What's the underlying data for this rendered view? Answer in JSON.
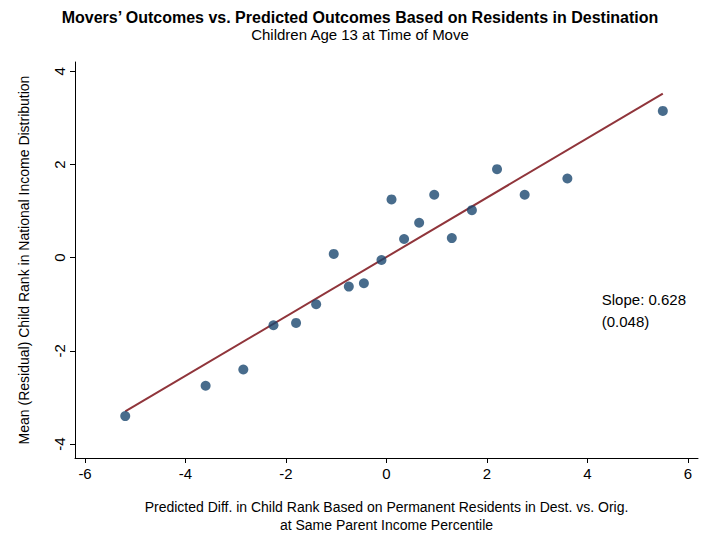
{
  "chart_data": {
    "type": "scatter",
    "title": "Movers’ Outcomes vs. Predicted Outcomes Based on Residents in Destination",
    "subtitle": "Children Age 13 at Time of Move",
    "x_label": "Predicted Diff. in Child Rank Based on Permanent Residents in Dest. vs. Orig.\nat Same Parent Income Percentile",
    "y_label": "Mean (Residual) Child Rank in National Income Distribution",
    "annotation": [
      "Slope: 0.628",
      "(0.048)"
    ],
    "x": [
      -5.2,
      -3.6,
      -2.85,
      -2.25,
      -1.8,
      -1.4,
      -1.05,
      -0.75,
      -0.45,
      -0.1,
      0.1,
      0.35,
      0.65,
      0.95,
      1.3,
      1.7,
      2.2,
      2.75,
      3.6,
      5.5
    ],
    "values": [
      -3.4,
      -2.75,
      -2.4,
      -1.45,
      -1.4,
      -1.0,
      0.08,
      -0.62,
      -0.55,
      -0.05,
      1.25,
      0.4,
      0.75,
      1.35,
      0.42,
      1.02,
      1.9,
      1.35,
      1.7,
      3.15
    ],
    "color": "#1a476f",
    "marker": "circle",
    "fit_line": {
      "type": "line",
      "x": [
        -5.2,
        5.5
      ],
      "values": [
        -3.3,
        3.52
      ],
      "color": "#90353b"
    },
    "xlim": [
      -6.2,
      6.2
    ],
    "xticks": [
      -6,
      -4,
      -2,
      0,
      2,
      4,
      6
    ],
    "ylim": [
      -4.3,
      4.2
    ],
    "yticks": [
      -4,
      -2,
      0,
      2,
      4
    ],
    "grid": false
  }
}
